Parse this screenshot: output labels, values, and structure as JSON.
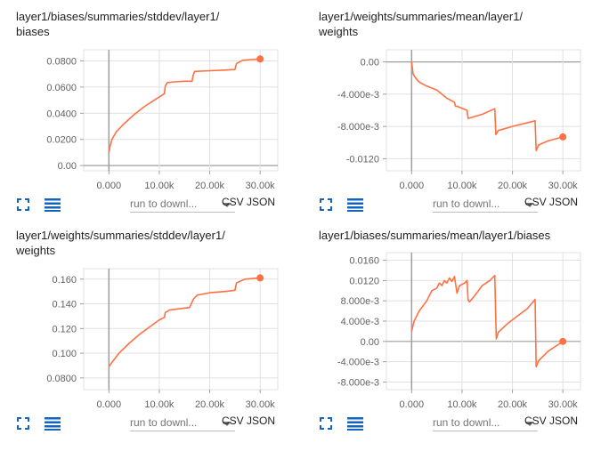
{
  "colors": {
    "line": "#ff7043",
    "axis": "#9e9e9e",
    "grid": "#e0e0e0",
    "tick": "#616161",
    "icon": "#1565c0"
  },
  "icons": {
    "expand": "fullscreen-icon",
    "data_table": "list-icon",
    "caret": "triangle-down-icon"
  },
  "cards": [
    {
      "title": "layer1/biases/summaries/stddev/layer1/\nbiases",
      "download_placeholder": "run to downl...",
      "csv_label": "CSV",
      "json_label": "JSON",
      "chart_data": {
        "type": "line",
        "xlim": [
          -5000,
          33500
        ],
        "ylim": [
          -0.004,
          0.0885
        ],
        "x_ticks": [
          0,
          10000,
          20000,
          30000
        ],
        "x_tick_labels": [
          "0.000",
          "10.00k",
          "20.00k",
          "30.00k"
        ],
        "y_ticks": [
          0,
          0.02,
          0.04,
          0.06,
          0.08
        ],
        "y_tick_labels": [
          "0.00",
          "0.0200",
          "0.0400",
          "0.0600",
          "0.0800"
        ],
        "grid": true,
        "series": [
          {
            "x": [
              0,
              200,
              600,
              1500,
              3000,
              5000,
              7000,
              9000,
              11000,
              11200,
              11600,
              13000,
              15000,
              16500,
              16700,
              17000,
              20000,
              23000,
              25000,
              25300,
              26500,
              28000,
              29000,
              30000
            ],
            "y": [
              0.0105,
              0.014,
              0.02,
              0.026,
              0.032,
              0.039,
              0.045,
              0.05,
              0.055,
              0.061,
              0.0635,
              0.064,
              0.0645,
              0.0645,
              0.069,
              0.072,
              0.0725,
              0.073,
              0.0735,
              0.078,
              0.0805,
              0.081,
              0.0812,
              0.0815
            ],
            "end_marker": true
          }
        ]
      }
    },
    {
      "title": "layer1/weights/summaries/mean/layer1/\nweights",
      "download_placeholder": "run to downl...",
      "csv_label": "CSV",
      "json_label": "JSON",
      "chart_data": {
        "type": "line",
        "xlim": [
          -5000,
          33500
        ],
        "ylim": [
          -0.0135,
          0.0015
        ],
        "x_ticks": [
          0,
          10000,
          20000,
          30000
        ],
        "x_tick_labels": [
          "0.000",
          "10.00k",
          "20.00k",
          "30.00k"
        ],
        "y_ticks": [
          0,
          -0.004,
          -0.008,
          -0.012
        ],
        "y_tick_labels": [
          "0.00",
          "-4.000e-3",
          "-8.000e-3",
          "-0.0120"
        ],
        "grid": true,
        "series": [
          {
            "x": [
              0,
              300,
              800,
              1500,
              3000,
              5000,
              7000,
              8500,
              8700,
              9000,
              11000,
              11200,
              14000,
              16500,
              16700,
              17200,
              20000,
              24500,
              24700,
              25200,
              27000,
              30000
            ],
            "y": [
              0.0,
              -0.0015,
              -0.002,
              -0.0025,
              -0.003,
              -0.0035,
              -0.0045,
              -0.005,
              -0.0055,
              -0.0055,
              -0.006,
              -0.007,
              -0.0065,
              -0.0058,
              -0.009,
              -0.0085,
              -0.008,
              -0.0073,
              -0.011,
              -0.0103,
              -0.0098,
              -0.0093
            ],
            "end_marker": true
          }
        ]
      }
    },
    {
      "title": "layer1/weights/summaries/stddev/layer1/\nweights",
      "download_placeholder": "run to downl...",
      "csv_label": "CSV",
      "json_label": "JSON",
      "chart_data": {
        "type": "line",
        "xlim": [
          -5000,
          33500
        ],
        "ylim": [
          0.0705,
          0.1685
        ],
        "x_ticks": [
          0,
          10000,
          20000,
          30000
        ],
        "x_tick_labels": [
          "0.000",
          "10.00k",
          "20.00k",
          "30.00k"
        ],
        "y_ticks": [
          0.08,
          0.1,
          0.12,
          0.14,
          0.16
        ],
        "y_tick_labels": [
          "0.0800",
          "0.100",
          "0.120",
          "0.140",
          "0.160"
        ],
        "grid": true,
        "series": [
          {
            "x": [
              0,
              500,
              2000,
              4000,
              6000,
              8000,
              10000,
              11000,
              11200,
              12000,
              14000,
              16000,
              16800,
              17500,
              20000,
              23000,
              25000,
              25300,
              27000,
              30000
            ],
            "y": [
              0.089,
              0.092,
              0.1,
              0.108,
              0.115,
              0.121,
              0.127,
              0.129,
              0.133,
              0.135,
              0.136,
              0.137,
              0.144,
              0.147,
              0.149,
              0.15,
              0.151,
              0.157,
              0.16,
              0.161
            ],
            "end_marker": true
          }
        ]
      }
    },
    {
      "title": "layer1/biases/summaries/mean/layer1/biases",
      "download_placeholder": "run to downl...",
      "csv_label": "CSV",
      "json_label": "JSON",
      "chart_data": {
        "type": "line",
        "xlim": [
          -5000,
          33500
        ],
        "ylim": [
          -0.0095,
          0.0175
        ],
        "x_ticks": [
          0,
          10000,
          20000,
          30000
        ],
        "x_tick_labels": [
          "0.000",
          "10.00k",
          "20.00k",
          "30.00k"
        ],
        "y_ticks": [
          0.016,
          0.012,
          0.008,
          0.004,
          0,
          -0.004,
          -0.008
        ],
        "y_tick_labels": [
          "0.0160",
          "0.0120",
          "8.000e-3",
          "4.000e-3",
          "0.00",
          "-4.000e-3",
          "-8.000e-3"
        ],
        "grid": true,
        "series": [
          {
            "x": [
              0,
              500,
              1500,
              3000,
              4000,
              5000,
              5500,
              6000,
              6500,
              7000,
              7500,
              8000,
              8500,
              9000,
              9500,
              10500,
              11000,
              11200,
              11500,
              12500,
              14000,
              15500,
              16500,
              16800,
              17200,
              19000,
              21000,
              23000,
              24500,
              24700,
              25200,
              27000,
              28500,
              30000
            ],
            "y": [
              0.002,
              0.004,
              0.006,
              0.008,
              0.01,
              0.0105,
              0.0115,
              0.011,
              0.012,
              0.0115,
              0.0125,
              0.0118,
              0.0128,
              0.0095,
              0.011,
              0.0115,
              0.012,
              0.0082,
              0.0078,
              0.009,
              0.011,
              0.012,
              0.013,
              0.0005,
              0.0018,
              0.0035,
              0.005,
              0.0065,
              0.0083,
              -0.005,
              -0.0038,
              -0.002,
              -0.001,
              0.0
            ],
            "end_marker": true
          }
        ]
      }
    }
  ]
}
